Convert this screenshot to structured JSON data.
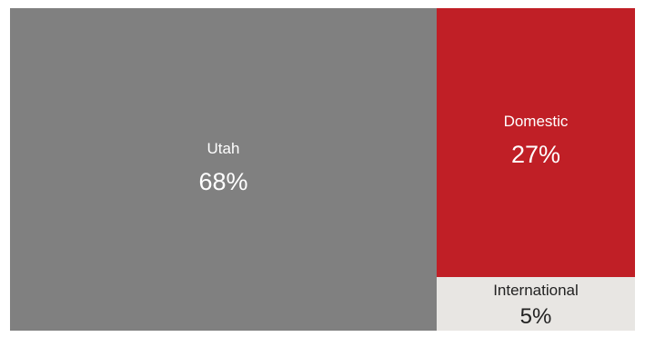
{
  "chart_data": {
    "type": "treemap",
    "title": "",
    "items": [
      {
        "label": "Utah",
        "value": 68,
        "display": "68%",
        "color": "#808080",
        "text_color": "#ffffff"
      },
      {
        "label": "Domestic",
        "value": 27,
        "display": "27%",
        "color": "#c01f26",
        "text_color": "#ffffff"
      },
      {
        "label": "International",
        "value": 5,
        "display": "5%",
        "color": "#e8e6e3",
        "text_color": "#222222"
      }
    ]
  }
}
